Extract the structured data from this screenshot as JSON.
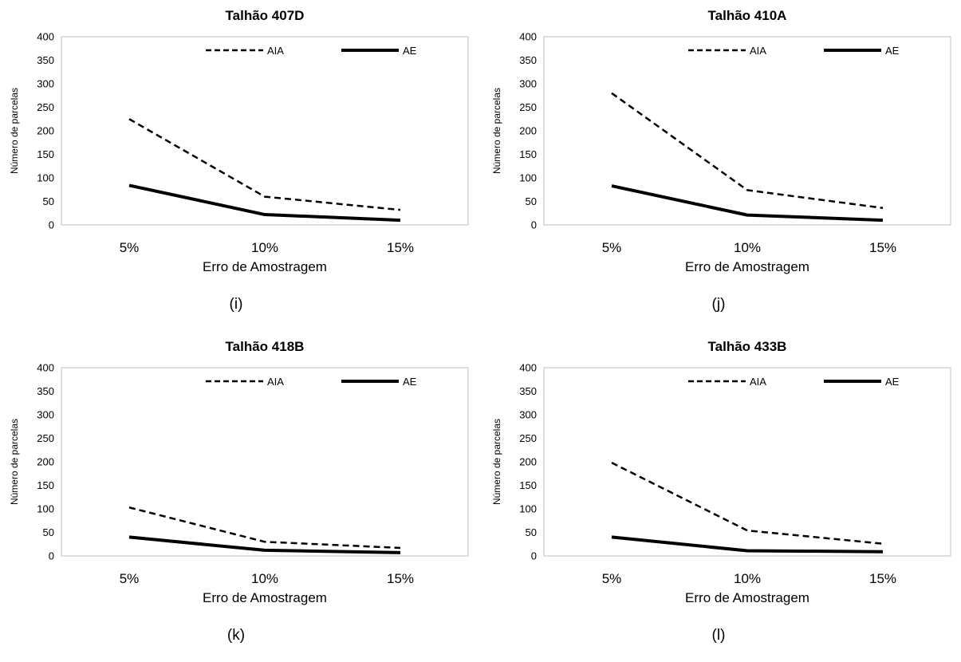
{
  "chart_data": [
    {
      "type": "line",
      "title": "Talhão 407D",
      "caption": "(i)",
      "xlabel": "Erro de Amostragem",
      "ylabel": "Número de parcelas",
      "categories": [
        "5%",
        "10%",
        "15%"
      ],
      "ylim": [
        0,
        400
      ],
      "yticks": [
        "0",
        "50",
        "100",
        "150",
        "200",
        "250",
        "300",
        "350",
        "400"
      ],
      "legend_position": "top",
      "series": [
        {
          "name": "AIA",
          "style": "dashed",
          "values": [
            225,
            60,
            32
          ]
        },
        {
          "name": "AE",
          "style": "solid",
          "values": [
            84,
            22,
            10
          ]
        }
      ]
    },
    {
      "type": "line",
      "title": "Talhão 410A",
      "caption": "(j)",
      "xlabel": "Erro de Amostragem",
      "ylabel": "Número de parcelas",
      "categories": [
        "5%",
        "10%",
        "15%"
      ],
      "ylim": [
        0,
        400
      ],
      "yticks": [
        "0",
        "50",
        "100",
        "150",
        "200",
        "250",
        "300",
        "350",
        "400"
      ],
      "legend_position": "top",
      "series": [
        {
          "name": "AIA",
          "style": "dashed",
          "values": [
            280,
            74,
            36
          ]
        },
        {
          "name": "AE",
          "style": "solid",
          "values": [
            83,
            21,
            10
          ]
        }
      ]
    },
    {
      "type": "line",
      "title": "Talhão 418B",
      "caption": "(k)",
      "xlabel": "Erro de Amostragem",
      "ylabel": "Número de parcelas",
      "categories": [
        "5%",
        "10%",
        "15%"
      ],
      "ylim": [
        0,
        400
      ],
      "yticks": [
        "0",
        "50",
        "100",
        "150",
        "200",
        "250",
        "300",
        "350",
        "400"
      ],
      "legend_position": "top",
      "series": [
        {
          "name": "AIA",
          "style": "dashed",
          "values": [
            103,
            30,
            17
          ]
        },
        {
          "name": "AE",
          "style": "solid",
          "values": [
            40,
            12,
            7
          ]
        }
      ]
    },
    {
      "type": "line",
      "title": "Talhão 433B",
      "caption": "(l)",
      "xlabel": "Erro de Amostragem",
      "ylabel": "Número de parcelas",
      "categories": [
        "5%",
        "10%",
        "15%"
      ],
      "ylim": [
        0,
        400
      ],
      "yticks": [
        "0",
        "50",
        "100",
        "150",
        "200",
        "250",
        "300",
        "350",
        "400"
      ],
      "legend_position": "top",
      "series": [
        {
          "name": "AIA",
          "style": "dashed",
          "values": [
            198,
            54,
            26
          ]
        },
        {
          "name": "AE",
          "style": "solid",
          "values": [
            40,
            11,
            9
          ]
        }
      ]
    }
  ],
  "colors": {
    "line": "#000000",
    "axis_frame": "#bfbfbf"
  }
}
